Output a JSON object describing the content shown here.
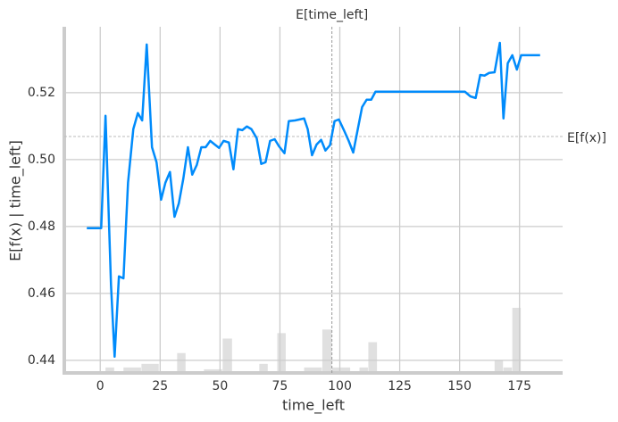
{
  "chart_data": {
    "type": "line",
    "x_label": "time_left",
    "y_label": "E[f(x) | time_left]",
    "xlim": [
      -15,
      193
    ],
    "ylim": [
      0.4357,
      0.5397
    ],
    "xticks": [
      0,
      25,
      50,
      75,
      100,
      125,
      150,
      175
    ],
    "yticks": [
      0.44,
      0.46,
      0.48,
      {
        "value": 0.5,
        "label": "0.50"
      },
      0.52
    ],
    "grid": true,
    "series": [
      {
        "color": "#008bfb",
        "x": [
          -5.6,
          0.4,
          2.2,
          4.5,
          6.0,
          7.8,
          9.7,
          11.6,
          13.8,
          15.7,
          17.5,
          19.4,
          21.6,
          23.5,
          25.4,
          27.2,
          29.1,
          31.0,
          32.8,
          34.7,
          36.6,
          38.4,
          40.3,
          42.2,
          44.0,
          45.9,
          47.8,
          49.6,
          51.5,
          53.7,
          55.6,
          57.5,
          59.3,
          61.2,
          63.1,
          65.3,
          67.2,
          69.0,
          70.9,
          72.8,
          74.6,
          76.9,
          78.7,
          81.3,
          85.1,
          86.6,
          88.4,
          90.3,
          92.2,
          94.0,
          95.9,
          97.8,
          99.6,
          101.9,
          103.7,
          105.6,
          107.5,
          109.3,
          111.2,
          113.1,
          114.9,
          152.2,
          154.5,
          156.7,
          158.6,
          160.4,
          162.3,
          164.6,
          166.8,
          168.3,
          170.1,
          172.0,
          173.9,
          175.7,
          183.6
        ],
        "values": [
          0.4795,
          0.4795,
          0.5131,
          0.4624,
          0.4411,
          0.4651,
          0.4645,
          0.4931,
          0.5091,
          0.5139,
          0.5117,
          0.5344,
          0.5037,
          0.4992,
          0.488,
          0.4931,
          0.4963,
          0.4829,
          0.4869,
          0.4944,
          0.5037,
          0.4955,
          0.4984,
          0.5037,
          0.5037,
          0.5056,
          0.5045,
          0.5035,
          0.5056,
          0.5051,
          0.4971,
          0.5091,
          0.5088,
          0.5099,
          0.5091,
          0.5064,
          0.4987,
          0.4992,
          0.5056,
          0.5061,
          0.504,
          0.5019,
          0.5115,
          0.5117,
          0.5123,
          0.5091,
          0.5013,
          0.5045,
          0.5059,
          0.5027,
          0.5043,
          0.5115,
          0.512,
          0.5085,
          0.5056,
          0.5021,
          0.5091,
          0.5157,
          0.5179,
          0.5179,
          0.5203,
          0.5203,
          0.5189,
          0.5184,
          0.5253,
          0.5251,
          0.5259,
          0.5261,
          0.5349,
          0.5123,
          0.5288,
          0.5312,
          0.5269,
          0.5312,
          0.5312
        ]
      }
    ],
    "histogram": {
      "color": "#cccccc",
      "bins": [
        2.2,
        6.0,
        9.7,
        17.2,
        24.6,
        32.1,
        35.8,
        43.3,
        51.1,
        55.2,
        66.4,
        70.1,
        73.9,
        77.6,
        85.1,
        92.7,
        96.8,
        104.5,
        108.2,
        111.9,
        115.7,
        153.0,
        160.4,
        164.6,
        168.3,
        172.0,
        175.7
      ],
      "counts": [
        3,
        0,
        3,
        5,
        0,
        11,
        0,
        2,
        19,
        0,
        5,
        0,
        22,
        0,
        3,
        24,
        3,
        0,
        3,
        17,
        0,
        1,
        0,
        7,
        3,
        36
      ]
    },
    "reference_lines": [
      {
        "axis": "x",
        "value": 96.7,
        "label": "E[time_left]"
      },
      {
        "axis": "y",
        "value": 0.5069,
        "label": "E[f(x)]"
      }
    ]
  }
}
